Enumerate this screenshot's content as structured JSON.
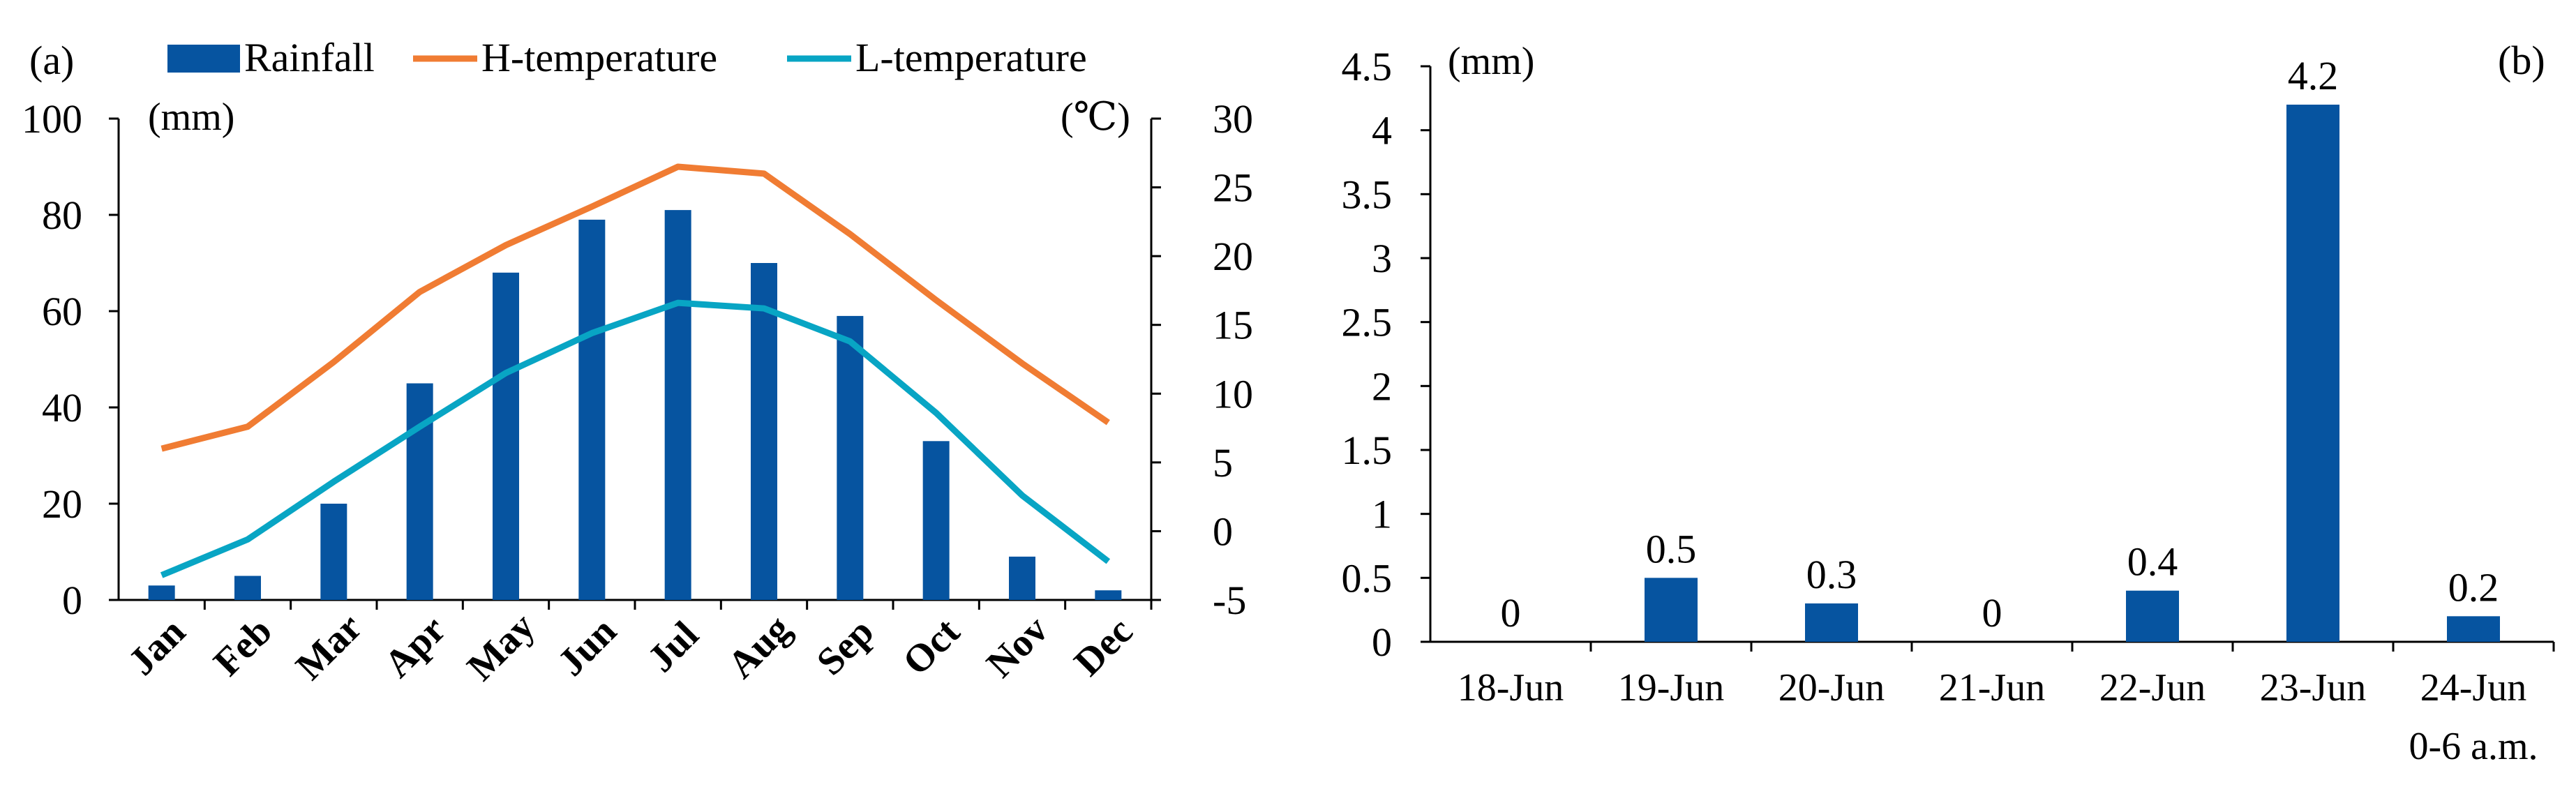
{
  "colors": {
    "rainfall": "#0654A0",
    "h_temperature": "#F07C33",
    "l_temperature": "#08A5C4",
    "axis": "#000000"
  },
  "chart_data": [
    {
      "panel_label": "(a)",
      "type": "bar+line",
      "categories": [
        "Jan",
        "Feb",
        "Mar",
        "Apr",
        "May",
        "Jun",
        "Jul",
        "Aug",
        "Sep",
        "Oct",
        "Nov",
        "Dec"
      ],
      "series": [
        {
          "name": "Rainfall",
          "type": "bar",
          "axis": "left",
          "values": [
            3,
            5,
            20,
            45,
            68,
            79,
            81,
            70,
            59,
            33,
            9,
            2
          ]
        },
        {
          "name": "H-temperature",
          "type": "line",
          "axis": "right",
          "values": [
            6.0,
            7.6,
            12.3,
            17.4,
            20.8,
            23.6,
            26.5,
            26.0,
            21.6,
            16.8,
            12.2,
            7.9
          ]
        },
        {
          "name": "L-temperature",
          "type": "line",
          "axis": "right",
          "values": [
            -3.2,
            -0.6,
            3.6,
            7.6,
            11.5,
            14.4,
            16.6,
            16.2,
            13.8,
            8.6,
            2.6,
            -2.2
          ]
        }
      ],
      "y_left": {
        "unit": "(mm)",
        "ylim": [
          0,
          100
        ],
        "ticks": [
          "0",
          "20",
          "40",
          "60",
          "80",
          "100"
        ]
      },
      "y_right": {
        "unit": "(℃)",
        "ylim": [
          -5,
          30
        ],
        "ticks": [
          "-5",
          "0",
          "5",
          "10",
          "15",
          "20",
          "25",
          "30"
        ]
      },
      "legend": {
        "position": "top",
        "entries": [
          "Rainfall",
          "H-temperature",
          "L-temperature"
        ]
      }
    },
    {
      "panel_label": "(b)",
      "type": "bar",
      "categories": [
        "18-Jun",
        "19-Jun",
        "20-Jun",
        "21-Jun",
        "22-Jun",
        "23-Jun",
        "24-Jun"
      ],
      "category_sublabels": [
        "",
        "",
        "",
        "",
        "",
        "",
        "0-6 a.m."
      ],
      "values": [
        0,
        0.5,
        0.3,
        0,
        0.4,
        4.2,
        0.2
      ],
      "data_labels": [
        "0",
        "0.5",
        "0.3",
        "0",
        "0.4",
        "4.2",
        "0.2"
      ],
      "y_left": {
        "unit": "(mm)",
        "ylim": [
          0,
          4.5
        ],
        "ticks": [
          "0",
          "0.5",
          "1",
          "1.5",
          "2",
          "2.5",
          "3",
          "3.5",
          "4",
          "4.5"
        ]
      }
    }
  ]
}
